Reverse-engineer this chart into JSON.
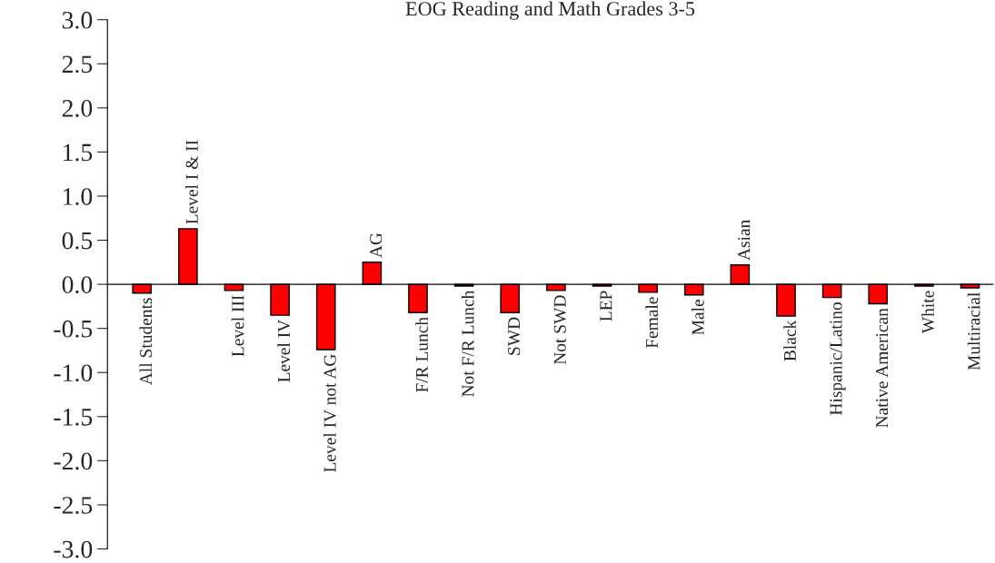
{
  "chart_data": {
    "type": "bar",
    "title": "EOG Reading and Math Grades 3-5",
    "categories": [
      "All Students",
      "Level I & II",
      "Level III",
      "Level IV",
      "Level IV not AG",
      "AG",
      "F/R Lunch",
      "Not F/R Lunch",
      "SWD",
      "Not SWD",
      "LEP",
      "Female",
      "Male",
      "Asian",
      "Black",
      "Hispanic/Latino",
      "Native American",
      "White",
      "Multiracial"
    ],
    "values": [
      -0.1,
      0.63,
      -0.07,
      -0.35,
      -0.74,
      0.25,
      -0.32,
      -0.02,
      -0.32,
      -0.07,
      -0.02,
      -0.09,
      -0.12,
      0.22,
      -0.36,
      -0.15,
      -0.22,
      -0.02,
      -0.04
    ],
    "color": "#ff0000",
    "ylim": [
      -3.0,
      3.0
    ],
    "yticks": [
      {
        "value": 3.0,
        "label": "3.0"
      },
      {
        "value": 2.5,
        "label": "2.5"
      },
      {
        "value": 2.0,
        "label": "2.0"
      },
      {
        "value": 1.5,
        "label": "1.5"
      },
      {
        "value": 1.0,
        "label": "1.0"
      },
      {
        "value": 0.5,
        "label": "0.5"
      },
      {
        "value": 0.0,
        "label": "0.0"
      },
      {
        "value": -0.5,
        "label": "-0.5"
      },
      {
        "value": -1.0,
        "label": "-1.0"
      },
      {
        "value": -1.5,
        "label": "-1.5"
      },
      {
        "value": -2.0,
        "label": "-2.0"
      },
      {
        "value": -2.5,
        "label": "-2.5"
      },
      {
        "value": -3.0,
        "label": "-3.0"
      }
    ],
    "grid": false,
    "legend": false
  }
}
